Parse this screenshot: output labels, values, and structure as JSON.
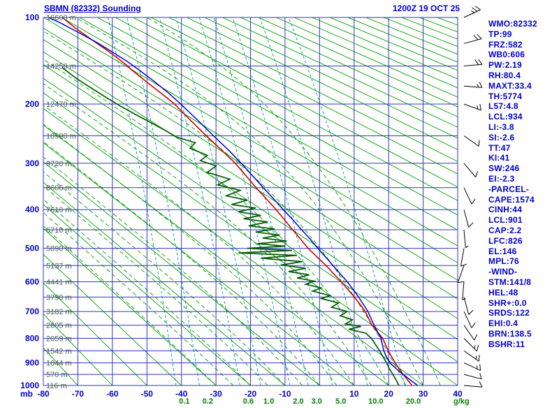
{
  "header": {
    "title": "SBMN (82332) Sounding",
    "datetime": "1200Z 19 OCT 25"
  },
  "indices_panel": {
    "lines": [
      "WMO:82332",
      "TP:99",
      "FRZ:582",
      "WB0:606",
      "PW:2.19",
      "RH:80.4",
      "MAXT:33.4",
      "TH:5774",
      "L57:4.8",
      "LCL:934",
      "LI:-3.8",
      "SI:-2.6",
      "TT:47",
      "KI:41",
      "SW:246",
      "EI:-2.3",
      "-PARCEL-",
      "CAPE:1574",
      "CINH:44",
      "LCL:901",
      "CAP:2.2",
      "LFC:826",
      "EL:146",
      "MPL:76",
      "-WIND-",
      "STM:141/8",
      "HEL:48",
      "SHR+:0.0",
      "SRDS:122",
      "EHI:0.4",
      "BRN:138.5",
      "BSHR:11"
    ]
  },
  "colors": {
    "text_blue": "#0000cc",
    "grid_blue": "#3333cc",
    "adiabat_green": "#00a000",
    "mixing_teal": "#009999",
    "height_label": "#4a644a",
    "mixing_label_green": "#008000",
    "temp_red": "#cc0000",
    "dew_green": "#005a00",
    "parcel_blue": "#0000cc",
    "barb_black": "#000000"
  },
  "chart_data": {
    "type": "line",
    "diagram": "stuve-sounding",
    "title": "SBMN (82332) Sounding",
    "valid": "1200Z 19 OCT 25",
    "pressure_axis": {
      "unit": "mb",
      "ticks": [
        100,
        200,
        300,
        400,
        500,
        600,
        700,
        800,
        900,
        1000
      ],
      "minor_step_mb": 50,
      "range": [
        100,
        1000
      ]
    },
    "temperature_axis": {
      "ticks": [
        -80,
        -70,
        -60,
        -50,
        -40,
        -30,
        -20,
        -10,
        10,
        20,
        30,
        40
      ],
      "range": [
        -80,
        40
      ]
    },
    "height_labels": [
      {
        "mb": 100,
        "label": "16600 m"
      },
      {
        "mb": 150,
        "label": "14250 m"
      },
      {
        "mb": 200,
        "label": "12470 m"
      },
      {
        "mb": 250,
        "label": "10990 m"
      },
      {
        "mb": 300,
        "label": "9720 m"
      },
      {
        "mb": 350,
        "label": "8606 m"
      },
      {
        "mb": 400,
        "label": "7610 m"
      },
      {
        "mb": 450,
        "label": "6710 m"
      },
      {
        "mb": 500,
        "label": "5890 m"
      },
      {
        "mb": 550,
        "label": "5137 m"
      },
      {
        "mb": 600,
        "label": "4441 m"
      },
      {
        "mb": 650,
        "label": "3790 m"
      },
      {
        "mb": 700,
        "label": "3182 m"
      },
      {
        "mb": 750,
        "label": "2605 m"
      },
      {
        "mb": 800,
        "label": "2059 m"
      },
      {
        "mb": 850,
        "label": "1542 m"
      },
      {
        "mb": 900,
        "label": "1044 m"
      },
      {
        "mb": 950,
        "label": "570 m"
      },
      {
        "mb": 1000,
        "label": "116 m"
      }
    ],
    "mixing_ratio_labels": {
      "values": [
        "0.1",
        "0.2",
        "0.6",
        "1.0",
        "2.0",
        "3.0",
        "5.0",
        "10.0",
        "20.0"
      ],
      "unit_label": "g/kg"
    },
    "background": {
      "dry_adiabats_theta_c": [
        -80,
        -70,
        -60,
        -50,
        -40,
        -30,
        -20,
        -10,
        0,
        10,
        20,
        30,
        40,
        50,
        60,
        70,
        80,
        90,
        100,
        110,
        120,
        130,
        140,
        150,
        160,
        170,
        180,
        190,
        200,
        210,
        220,
        230,
        240,
        250,
        260,
        270,
        280,
        290,
        300,
        310,
        320,
        330
      ],
      "moist_adiabats_surface_t_c": [
        -30,
        -25,
        -20,
        -15,
        -10,
        -5,
        0,
        5,
        10,
        15,
        20,
        25,
        30,
        35
      ],
      "mixing_ratio_lines_g_kg": [
        0.1,
        0.2,
        0.6,
        1.0,
        2.0,
        3.0,
        5.0,
        10.0,
        20.0
      ]
    },
    "series": [
      {
        "name": "temperature",
        "color": "#cc0000",
        "width": 1.6,
        "points_p_t": [
          [
            1000,
            26.8
          ],
          [
            975,
            25.5
          ],
          [
            950,
            24.2
          ],
          [
            925,
            23.0
          ],
          [
            900,
            21.9
          ],
          [
            875,
            20.9
          ],
          [
            850,
            19.9
          ],
          [
            825,
            19.1
          ],
          [
            800,
            18.3
          ],
          [
            775,
            16.7
          ],
          [
            750,
            15.2
          ],
          [
            725,
            14.2
          ],
          [
            700,
            13.2
          ],
          [
            675,
            11.7
          ],
          [
            650,
            10.1
          ],
          [
            625,
            8.2
          ],
          [
            600,
            6.3
          ],
          [
            575,
            4.1
          ],
          [
            550,
            1.9
          ],
          [
            525,
            -0.7
          ],
          [
            500,
            -3.3
          ],
          [
            475,
            -5.5
          ],
          [
            450,
            -7.8
          ],
          [
            425,
            -10.1
          ],
          [
            400,
            -12.6
          ],
          [
            375,
            -15.4
          ],
          [
            350,
            -18.4
          ],
          [
            325,
            -21.3
          ],
          [
            300,
            -24.4
          ],
          [
            275,
            -28.4
          ],
          [
            250,
            -32.8
          ],
          [
            225,
            -37.3
          ],
          [
            200,
            -42.0
          ],
          [
            185,
            -45.8
          ],
          [
            170,
            -50.0
          ],
          [
            155,
            -54.3
          ],
          [
            150,
            -55.6
          ],
          [
            140,
            -58.8
          ],
          [
            130,
            -62.4
          ],
          [
            120,
            -66.4
          ],
          [
            110,
            -70.6
          ],
          [
            100,
            -74.5
          ]
        ]
      },
      {
        "name": "dewpoint",
        "color": "#005a00",
        "width": 1.7,
        "points_p_t": [
          [
            1000,
            23.0
          ],
          [
            970,
            22.0
          ],
          [
            950,
            21.2
          ],
          [
            925,
            20.2
          ],
          [
            900,
            19.4
          ],
          [
            875,
            18.4
          ],
          [
            850,
            17.4
          ],
          [
            825,
            16.2
          ],
          [
            800,
            15.0
          ],
          [
            780,
            13.4
          ],
          [
            765,
            8.5
          ],
          [
            755,
            12.0
          ],
          [
            745,
            7.5
          ],
          [
            730,
            9.5
          ],
          [
            715,
            6.0
          ],
          [
            700,
            8.0
          ],
          [
            685,
            3.5
          ],
          [
            670,
            5.5
          ],
          [
            655,
            0.5
          ],
          [
            645,
            3.0
          ],
          [
            630,
            -2.0
          ],
          [
            620,
            0.5
          ],
          [
            608,
            -4.0
          ],
          [
            598,
            -1.5
          ],
          [
            588,
            -6.5
          ],
          [
            578,
            -3.0
          ],
          [
            568,
            -9.0
          ],
          [
            558,
            -4.0
          ],
          [
            548,
            -11.0
          ],
          [
            538,
            -5.0
          ],
          [
            528,
            -17.0
          ],
          [
            520,
            -6.5
          ],
          [
            513,
            -23.5
          ],
          [
            506,
            -8.0
          ],
          [
            500,
            -21.0
          ],
          [
            494,
            -10.0
          ],
          [
            487,
            -18.0
          ],
          [
            480,
            -9.5
          ],
          [
            472,
            -16.5
          ],
          [
            464,
            -11.5
          ],
          [
            456,
            -18.5
          ],
          [
            448,
            -13.0
          ],
          [
            440,
            -20.5
          ],
          [
            430,
            -15.0
          ],
          [
            422,
            -22.0
          ],
          [
            414,
            -17.0
          ],
          [
            405,
            -23.5
          ],
          [
            396,
            -18.5
          ],
          [
            388,
            -25.5
          ],
          [
            378,
            -21.0
          ],
          [
            368,
            -27.0
          ],
          [
            356,
            -23.0
          ],
          [
            344,
            -29.5
          ],
          [
            332,
            -26.0
          ],
          [
            318,
            -32.5
          ],
          [
            305,
            -30.0
          ],
          [
            295,
            -34.5
          ],
          [
            285,
            -32.5
          ],
          [
            272,
            -37.5
          ],
          [
            262,
            -36.0
          ],
          [
            252,
            -41.5
          ],
          [
            240,
            -45.0
          ],
          [
            228,
            -49.0
          ],
          [
            215,
            -53.5
          ],
          [
            202,
            -58.0
          ],
          [
            190,
            -62.0
          ],
          [
            178,
            -66.0
          ],
          [
            165,
            -70.5
          ],
          [
            152,
            -74.5
          ]
        ]
      },
      {
        "name": "parcel",
        "color": "#0000cc",
        "width": 1.5,
        "points_p_t": [
          [
            1000,
            28.4
          ],
          [
            975,
            26.3
          ],
          [
            950,
            24.2
          ],
          [
            925,
            22.2
          ],
          [
            901,
            20.4
          ],
          [
            875,
            19.4
          ],
          [
            850,
            18.6
          ],
          [
            826,
            18.2
          ],
          [
            800,
            17.8
          ],
          [
            775,
            16.8
          ],
          [
            750,
            15.8
          ],
          [
            725,
            14.9
          ],
          [
            700,
            14.0
          ],
          [
            675,
            12.7
          ],
          [
            650,
            11.3
          ],
          [
            625,
            9.7
          ],
          [
            600,
            8.0
          ],
          [
            575,
            6.0
          ],
          [
            550,
            3.9
          ],
          [
            525,
            1.8
          ],
          [
            500,
            -0.5
          ],
          [
            475,
            -2.7
          ],
          [
            450,
            -5.2
          ],
          [
            425,
            -7.7
          ],
          [
            400,
            -10.5
          ],
          [
            375,
            -13.3
          ],
          [
            350,
            -16.3
          ],
          [
            325,
            -19.4
          ],
          [
            300,
            -22.7
          ],
          [
            275,
            -26.4
          ],
          [
            250,
            -30.7
          ],
          [
            225,
            -35.2
          ],
          [
            200,
            -40.2
          ],
          [
            185,
            -43.6
          ],
          [
            170,
            -47.6
          ],
          [
            155,
            -52.2
          ],
          [
            145,
            -55.6
          ],
          [
            135,
            -59.6
          ],
          [
            125,
            -64.0
          ],
          [
            115,
            -69.2
          ],
          [
            105,
            -75.0
          ],
          [
            100,
            -78.5
          ]
        ]
      }
    ],
    "wind_barbs": [
      {
        "mb": 100,
        "dir": 65,
        "kt": 25
      },
      {
        "mb": 125,
        "dir": 75,
        "kt": 20
      },
      {
        "mb": 150,
        "dir": 85,
        "kt": 20
      },
      {
        "mb": 175,
        "dir": 95,
        "kt": 15
      },
      {
        "mb": 200,
        "dir": 110,
        "kt": 15
      },
      {
        "mb": 250,
        "dir": 125,
        "kt": 10
      },
      {
        "mb": 300,
        "dir": 140,
        "kt": 10
      },
      {
        "mb": 350,
        "dir": 155,
        "kt": 10
      },
      {
        "mb": 400,
        "dir": 165,
        "kt": 10
      },
      {
        "mb": 450,
        "dir": 175,
        "kt": 5
      },
      {
        "mb": 500,
        "dir": 190,
        "kt": 10
      },
      {
        "mb": 550,
        "dir": 200,
        "kt": 10
      },
      {
        "mb": 600,
        "dir": 185,
        "kt": 5
      },
      {
        "mb": 650,
        "dir": 165,
        "kt": 10
      },
      {
        "mb": 700,
        "dir": 155,
        "kt": 10
      },
      {
        "mb": 750,
        "dir": 145,
        "kt": 10
      },
      {
        "mb": 800,
        "dir": 135,
        "kt": 15
      },
      {
        "mb": 850,
        "dir": 125,
        "kt": 15
      },
      {
        "mb": 900,
        "dir": 115,
        "kt": 15
      },
      {
        "mb": 950,
        "dir": 105,
        "kt": 10
      },
      {
        "mb": 1000,
        "dir": 95,
        "kt": 10
      }
    ]
  }
}
